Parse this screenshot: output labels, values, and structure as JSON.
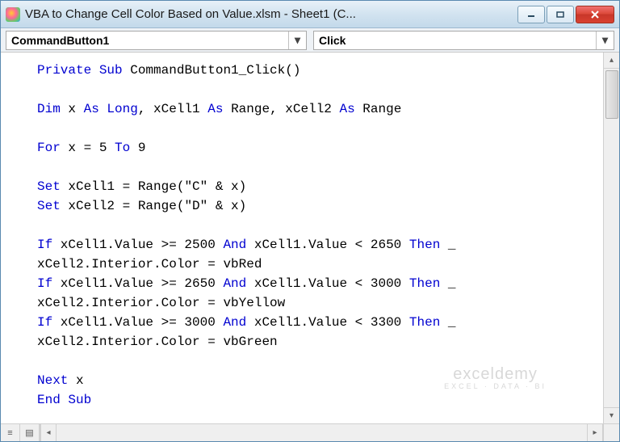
{
  "window": {
    "title": "VBA to Change Cell Color Based on Value.xlsm - Sheet1 (C..."
  },
  "dropdowns": {
    "object": "CommandButton1",
    "procedure": "Click"
  },
  "code": {
    "lines": [
      [
        [
          "kw",
          "Private Sub"
        ],
        [
          "",
          " CommandButton1_Click()"
        ]
      ],
      [],
      [
        [
          "kw",
          "Dim"
        ],
        [
          "",
          " x "
        ],
        [
          "kw",
          "As Long"
        ],
        [
          "",
          ", xCell1 "
        ],
        [
          "kw",
          "As"
        ],
        [
          "",
          " Range, xCell2 "
        ],
        [
          "kw",
          "As"
        ],
        [
          "",
          " Range"
        ]
      ],
      [],
      [
        [
          "kw",
          "For"
        ],
        [
          "",
          " x = 5 "
        ],
        [
          "kw",
          "To"
        ],
        [
          "",
          " 9"
        ]
      ],
      [],
      [
        [
          "kw",
          "Set"
        ],
        [
          "",
          " xCell1 = Range(\"C\" & x)"
        ]
      ],
      [
        [
          "kw",
          "Set"
        ],
        [
          "",
          " xCell2 = Range(\"D\" & x)"
        ]
      ],
      [],
      [
        [
          "kw",
          "If"
        ],
        [
          "",
          " xCell1.Value >= 2500 "
        ],
        [
          "kw",
          "And"
        ],
        [
          "",
          " xCell1.Value < 2650 "
        ],
        [
          "kw",
          "Then"
        ],
        [
          "",
          " _"
        ]
      ],
      [
        [
          "",
          "xCell2.Interior.Color = vbRed"
        ]
      ],
      [
        [
          "kw",
          "If"
        ],
        [
          "",
          " xCell1.Value >= 2650 "
        ],
        [
          "kw",
          "And"
        ],
        [
          "",
          " xCell1.Value < 3000 "
        ],
        [
          "kw",
          "Then"
        ],
        [
          "",
          " _"
        ]
      ],
      [
        [
          "",
          "xCell2.Interior.Color = vbYellow"
        ]
      ],
      [
        [
          "kw",
          "If"
        ],
        [
          "",
          " xCell1.Value >= 3000 "
        ],
        [
          "kw",
          "And"
        ],
        [
          "",
          " xCell1.Value < 3300 "
        ],
        [
          "kw",
          "Then"
        ],
        [
          "",
          " _"
        ]
      ],
      [
        [
          "",
          "xCell2.Interior.Color = vbGreen"
        ]
      ],
      [],
      [
        [
          "kw",
          "Next"
        ],
        [
          "",
          " x"
        ]
      ],
      [
        [
          "kw",
          "End Sub"
        ]
      ]
    ]
  },
  "watermark": {
    "main": "exceldemy",
    "sub": "EXCEL · DATA · BI"
  },
  "colors": {
    "keyword": "#0000d0",
    "code_text": "#000000",
    "titlebar_grad_top": "#e8f1f8",
    "titlebar_grad_bot": "#c3d9ea",
    "close_red": "#dc4a3a"
  }
}
